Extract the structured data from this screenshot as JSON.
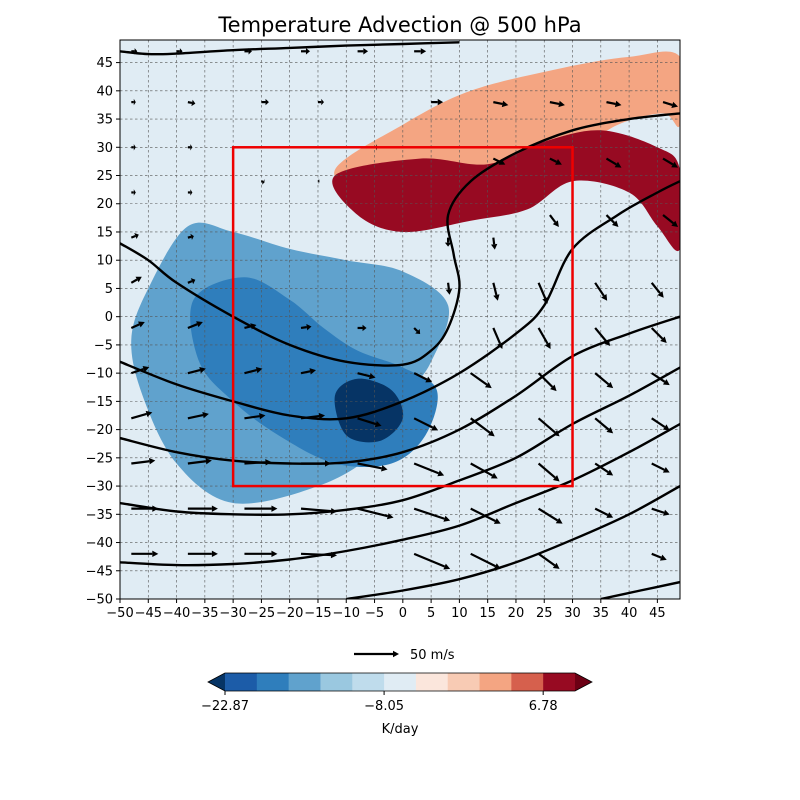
{
  "chart_data": {
    "type": "heatmap",
    "title": "Temperature Advection @ 500 hPa",
    "xlabel": "",
    "ylabel": "",
    "xlim": [
      -50,
      49
    ],
    "ylim": [
      -50,
      49
    ],
    "xticks": [
      -50,
      -45,
      -40,
      -35,
      -30,
      -25,
      -20,
      -15,
      -10,
      -5,
      0,
      5,
      10,
      15,
      20,
      25,
      30,
      35,
      40,
      45
    ],
    "yticks": [
      -50,
      -45,
      -40,
      -35,
      -30,
      -25,
      -20,
      -15,
      -10,
      -5,
      0,
      5,
      10,
      15,
      20,
      25,
      30,
      35,
      40,
      45
    ],
    "grid": true,
    "filled_contour_levels_K_per_day": [
      -22.87,
      -8.05,
      6.78
    ],
    "colorbar": {
      "label": "K/day",
      "tick_labels": [
        "−22.87",
        "−8.05",
        "6.78"
      ],
      "colors": [
        "#063465",
        "#1c5ca8",
        "#2f7ebc",
        "#60a2cd",
        "#9ac8e0",
        "#bfdcec",
        "#e0ecf4",
        "#fbe6dc",
        "#f8cbb4",
        "#f4a582",
        "#d6604d",
        "#970a22",
        "#6c0014"
      ],
      "extend": "both"
    },
    "vector_key": {
      "label": "50 m/s",
      "value": 50
    },
    "box": {
      "x": [
        -30,
        30
      ],
      "y": [
        -30,
        30
      ],
      "color": "#ee0000"
    },
    "contour_color": "#000000",
    "regions": [
      {
        "category": "warm_strong",
        "points": [
          [
            -12,
            25
          ],
          [
            3,
            28
          ],
          [
            15,
            27
          ],
          [
            25,
            31
          ],
          [
            35,
            33
          ],
          [
            45,
            30
          ],
          [
            49,
            26
          ],
          [
            49,
            12
          ],
          [
            45,
            16
          ],
          [
            40,
            22
          ],
          [
            30,
            24
          ],
          [
            22,
            19
          ],
          [
            12,
            17
          ],
          [
            0,
            15
          ],
          [
            -8,
            18
          ]
        ]
      },
      {
        "category": "warm_moderate",
        "points": [
          [
            -12,
            26
          ],
          [
            0,
            34
          ],
          [
            12,
            40
          ],
          [
            28,
            44
          ],
          [
            40,
            46
          ],
          [
            49,
            46
          ],
          [
            49,
            34
          ],
          [
            46,
            36
          ],
          [
            38,
            34
          ],
          [
            30,
            29
          ],
          [
            22,
            27
          ],
          [
            12,
            25
          ],
          [
            2,
            24
          ],
          [
            -6,
            21
          ]
        ]
      },
      {
        "category": "cool_moderate",
        "points": [
          [
            -45,
            5
          ],
          [
            -38,
            16
          ],
          [
            -30,
            15
          ],
          [
            -20,
            12
          ],
          [
            -10,
            10
          ],
          [
            0,
            8
          ],
          [
            8,
            2
          ],
          [
            5,
            -8
          ],
          [
            0,
            -15
          ],
          [
            -5,
            -24
          ],
          [
            -15,
            -30
          ],
          [
            -30,
            -33
          ],
          [
            -40,
            -26
          ],
          [
            -46,
            -14
          ],
          [
            -48,
            -4
          ]
        ]
      },
      {
        "category": "cool_strong",
        "points": [
          [
            -37,
            3
          ],
          [
            -28,
            7
          ],
          [
            -20,
            3
          ],
          [
            -14,
            -2
          ],
          [
            -8,
            -6
          ],
          [
            0,
            -9
          ],
          [
            6,
            -13
          ],
          [
            4,
            -21
          ],
          [
            -2,
            -26
          ],
          [
            -12,
            -26
          ],
          [
            -22,
            -21
          ],
          [
            -30,
            -15
          ],
          [
            -36,
            -8
          ]
        ]
      },
      {
        "category": "cool_extreme",
        "points": [
          [
            -12,
            -14
          ],
          [
            -8,
            -11
          ],
          [
            -2,
            -13
          ],
          [
            0,
            -18
          ],
          [
            -4,
            -22
          ],
          [
            -10,
            -21
          ]
        ]
      }
    ],
    "height_contours": [
      [
        [
          -50,
          47
        ],
        [
          -45,
          46.5
        ],
        [
          -40,
          46.6
        ],
        [
          -30,
          47.2
        ],
        [
          -20,
          47.6
        ],
        [
          -10,
          48
        ],
        [
          0,
          48.3
        ],
        [
          10,
          48.6
        ]
      ],
      [
        [
          -50,
          13
        ],
        [
          -45,
          10
        ],
        [
          -40,
          6
        ],
        [
          -30,
          0
        ],
        [
          -20,
          -5
        ],
        [
          -10,
          -8
        ],
        [
          0,
          -8.5
        ],
        [
          5,
          -6
        ],
        [
          8,
          -2
        ],
        [
          10,
          5
        ],
        [
          9,
          11
        ],
        [
          8,
          18
        ],
        [
          12,
          24
        ],
        [
          20,
          29
        ],
        [
          30,
          33
        ],
        [
          40,
          35
        ],
        [
          49,
          36
        ]
      ],
      [
        [
          -50,
          -8
        ],
        [
          -40,
          -12
        ],
        [
          -30,
          -15
        ],
        [
          -20,
          -17.5
        ],
        [
          -10,
          -18
        ],
        [
          0,
          -15
        ],
        [
          10,
          -10
        ],
        [
          20,
          -3
        ],
        [
          25,
          2
        ],
        [
          30,
          12
        ],
        [
          38,
          18
        ],
        [
          45,
          22
        ],
        [
          49,
          24
        ]
      ],
      [
        [
          -50,
          -21.5
        ],
        [
          -40,
          -24
        ],
        [
          -30,
          -25.5
        ],
        [
          -20,
          -26
        ],
        [
          -10,
          -25.8
        ],
        [
          0,
          -24
        ],
        [
          10,
          -20
        ],
        [
          20,
          -14
        ],
        [
          30,
          -7
        ],
        [
          40,
          -3
        ],
        [
          49,
          0
        ]
      ],
      [
        [
          -50,
          -33
        ],
        [
          -40,
          -34.5
        ],
        [
          -30,
          -35
        ],
        [
          -20,
          -35
        ],
        [
          -10,
          -34.2
        ],
        [
          0,
          -32.5
        ],
        [
          10,
          -29
        ],
        [
          20,
          -25
        ],
        [
          30,
          -19
        ],
        [
          40,
          -14
        ],
        [
          49,
          -9
        ]
      ],
      [
        [
          -50,
          -43.5
        ],
        [
          -40,
          -44
        ],
        [
          -30,
          -43.8
        ],
        [
          -20,
          -43
        ],
        [
          -10,
          -41.5
        ],
        [
          0,
          -39.5
        ],
        [
          10,
          -37
        ],
        [
          20,
          -33
        ],
        [
          30,
          -29
        ],
        [
          40,
          -24
        ],
        [
          49,
          -19
        ]
      ],
      [
        [
          -10,
          -50
        ],
        [
          0,
          -48.5
        ],
        [
          10,
          -46.5
        ],
        [
          20,
          -43.5
        ],
        [
          30,
          -39.5
        ],
        [
          40,
          -35
        ],
        [
          49,
          -30
        ]
      ],
      [
        [
          35,
          -50
        ],
        [
          42,
          -48.5
        ],
        [
          49,
          -47
        ]
      ]
    ],
    "wind_vectors_u_v_m_per_s": [
      {
        "x": -48,
        "y": 47,
        "u": 4,
        "v": 0
      },
      {
        "x": -40,
        "y": 47,
        "u": 4,
        "v": 0
      },
      {
        "x": -28,
        "y": 47,
        "u": 5,
        "v": 0
      },
      {
        "x": -18,
        "y": 47,
        "u": 6,
        "v": 0
      },
      {
        "x": -8,
        "y": 47,
        "u": 7,
        "v": 0
      },
      {
        "x": 2,
        "y": 47,
        "u": 8,
        "v": 0
      },
      {
        "x": -48,
        "y": 38,
        "u": 3,
        "v": 0
      },
      {
        "x": -38,
        "y": 38,
        "u": 5,
        "v": -1
      },
      {
        "x": -25,
        "y": 38,
        "u": 5,
        "v": 0
      },
      {
        "x": -15,
        "y": 38,
        "u": 4,
        "v": 0
      },
      {
        "x": -48,
        "y": 30,
        "u": 3,
        "v": 0
      },
      {
        "x": -38,
        "y": 30,
        "u": 3,
        "v": 0
      },
      {
        "x": -48,
        "y": 22,
        "u": 3,
        "v": 0
      },
      {
        "x": -38,
        "y": 22,
        "u": 3,
        "v": 0
      },
      {
        "x": -48,
        "y": 14,
        "u": 5,
        "v": 2
      },
      {
        "x": -38,
        "y": 14,
        "u": 4,
        "v": 1
      },
      {
        "x": -48,
        "y": 6,
        "u": 7,
        "v": 4
      },
      {
        "x": -38,
        "y": 6,
        "u": 5,
        "v": 2
      },
      {
        "x": -48,
        "y": -2,
        "u": 9,
        "v": 4
      },
      {
        "x": -38,
        "y": -2,
        "u": 10,
        "v": 4
      },
      {
        "x": -28,
        "y": -2,
        "u": 8,
        "v": 2
      },
      {
        "x": -18,
        "y": -2,
        "u": 7,
        "v": 1
      },
      {
        "x": -8,
        "y": -2,
        "u": 6,
        "v": 0
      },
      {
        "x": -48,
        "y": -10,
        "u": 12,
        "v": 4
      },
      {
        "x": -38,
        "y": -10,
        "u": 12,
        "v": 3
      },
      {
        "x": -28,
        "y": -10,
        "u": 12,
        "v": 3
      },
      {
        "x": -18,
        "y": -10,
        "u": 10,
        "v": 2
      },
      {
        "x": -48,
        "y": -18,
        "u": 14,
        "v": 4
      },
      {
        "x": -38,
        "y": -18,
        "u": 14,
        "v": 3
      },
      {
        "x": -28,
        "y": -18,
        "u": 14,
        "v": 2
      },
      {
        "x": -18,
        "y": -18,
        "u": 16,
        "v": 2
      },
      {
        "x": -48,
        "y": -26,
        "u": 16,
        "v": 2
      },
      {
        "x": -38,
        "y": -26,
        "u": 16,
        "v": 2
      },
      {
        "x": -28,
        "y": -26,
        "u": 18,
        "v": 1
      },
      {
        "x": -18,
        "y": -26,
        "u": 20,
        "v": 0
      },
      {
        "x": -48,
        "y": -34,
        "u": 18,
        "v": 0
      },
      {
        "x": -38,
        "y": -34,
        "u": 20,
        "v": 0
      },
      {
        "x": -28,
        "y": -34,
        "u": 22,
        "v": 0
      },
      {
        "x": -18,
        "y": -34,
        "u": 24,
        "v": -2
      },
      {
        "x": -48,
        "y": -42,
        "u": 18,
        "v": 0
      },
      {
        "x": -38,
        "y": -42,
        "u": 20,
        "v": 0
      },
      {
        "x": -28,
        "y": -42,
        "u": 22,
        "v": 0
      },
      {
        "x": -18,
        "y": -42,
        "u": 24,
        "v": -1
      },
      {
        "x": -8,
        "y": -10,
        "u": 12,
        "v": -3
      },
      {
        "x": -8,
        "y": -18,
        "u": 16,
        "v": -5
      },
      {
        "x": -8,
        "y": -26,
        "u": 20,
        "v": -4
      },
      {
        "x": -8,
        "y": -34,
        "u": 24,
        "v": -6
      },
      {
        "x": 2,
        "y": -2,
        "u": 4,
        "v": -4
      },
      {
        "x": 2,
        "y": -10,
        "u": 12,
        "v": -6
      },
      {
        "x": 2,
        "y": -18,
        "u": 16,
        "v": -8
      },
      {
        "x": 2,
        "y": -26,
        "u": 20,
        "v": -8
      },
      {
        "x": 2,
        "y": -34,
        "u": 24,
        "v": -8
      },
      {
        "x": 2,
        "y": -42,
        "u": 24,
        "v": -10
      },
      {
        "x": 12,
        "y": -10,
        "u": 14,
        "v": -10
      },
      {
        "x": 12,
        "y": -18,
        "u": 16,
        "v": -12
      },
      {
        "x": 12,
        "y": -26,
        "u": 18,
        "v": -10
      },
      {
        "x": 12,
        "y": -34,
        "u": 20,
        "v": -10
      },
      {
        "x": 12,
        "y": -42,
        "u": 20,
        "v": -10
      },
      {
        "x": 8,
        "y": 14,
        "u": 0,
        "v": -6
      },
      {
        "x": 8,
        "y": 6,
        "u": 1,
        "v": -8
      },
      {
        "x": 16,
        "y": 14,
        "u": 1,
        "v": -8
      },
      {
        "x": 16,
        "y": 6,
        "u": 3,
        "v": -12
      },
      {
        "x": 16,
        "y": -2,
        "u": 6,
        "v": -14
      },
      {
        "x": 24,
        "y": 6,
        "u": 6,
        "v": -14
      },
      {
        "x": 24,
        "y": -2,
        "u": 8,
        "v": -14
      },
      {
        "x": 24,
        "y": -10,
        "u": 12,
        "v": -12
      },
      {
        "x": 24,
        "y": -18,
        "u": 14,
        "v": -12
      },
      {
        "x": 24,
        "y": -26,
        "u": 14,
        "v": -12
      },
      {
        "x": 24,
        "y": -34,
        "u": 16,
        "v": -10
      },
      {
        "x": 24,
        "y": -42,
        "u": 14,
        "v": -10
      },
      {
        "x": 34,
        "y": 6,
        "u": 8,
        "v": -12
      },
      {
        "x": 34,
        "y": -2,
        "u": 10,
        "v": -12
      },
      {
        "x": 34,
        "y": -10,
        "u": 12,
        "v": -10
      },
      {
        "x": 34,
        "y": -18,
        "u": 12,
        "v": -10
      },
      {
        "x": 34,
        "y": -26,
        "u": 12,
        "v": -8
      },
      {
        "x": 34,
        "y": -34,
        "u": 12,
        "v": -6
      },
      {
        "x": 44,
        "y": 6,
        "u": 8,
        "v": -10
      },
      {
        "x": 44,
        "y": -2,
        "u": 10,
        "v": -10
      },
      {
        "x": 44,
        "y": -10,
        "u": 12,
        "v": -8
      },
      {
        "x": 44,
        "y": -18,
        "u": 12,
        "v": -8
      },
      {
        "x": 44,
        "y": -26,
        "u": 12,
        "v": -6
      },
      {
        "x": 44,
        "y": -34,
        "u": 12,
        "v": -4
      },
      {
        "x": 44,
        "y": -42,
        "u": 10,
        "v": -4
      },
      {
        "x": 16,
        "y": 38,
        "u": 10,
        "v": -2
      },
      {
        "x": 26,
        "y": 38,
        "u": 10,
        "v": -2
      },
      {
        "x": 36,
        "y": 38,
        "u": 10,
        "v": -2
      },
      {
        "x": 46,
        "y": 38,
        "u": 10,
        "v": -3
      },
      {
        "x": 16,
        "y": 28,
        "u": 8,
        "v": -4
      },
      {
        "x": 26,
        "y": 28,
        "u": 8,
        "v": -4
      },
      {
        "x": 36,
        "y": 28,
        "u": 10,
        "v": -6
      },
      {
        "x": 46,
        "y": 28,
        "u": 10,
        "v": -6
      },
      {
        "x": 26,
        "y": 18,
        "u": 6,
        "v": -8
      },
      {
        "x": 36,
        "y": 18,
        "u": 8,
        "v": -8
      },
      {
        "x": 46,
        "y": 18,
        "u": 10,
        "v": -8
      },
      {
        "x": -25,
        "y": 24,
        "u": 2,
        "v": -1
      },
      {
        "x": -15,
        "y": 24,
        "u": 1,
        "v": 0
      },
      {
        "x": -5,
        "y": 30,
        "u": 2,
        "v": 0
      },
      {
        "x": 5,
        "y": 38,
        "u": 8,
        "v": 0
      }
    ]
  }
}
